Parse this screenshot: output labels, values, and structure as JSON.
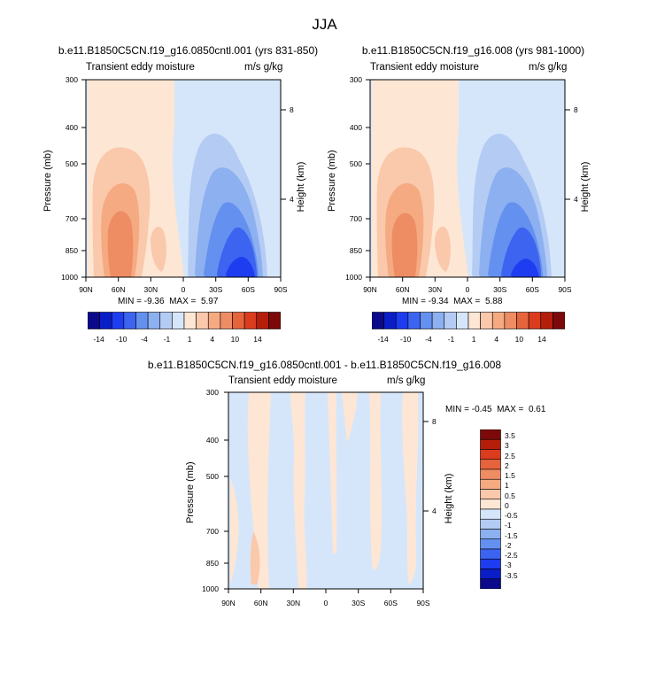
{
  "title": "JJA",
  "colors": {
    "neg": [
      "#0a0a8a",
      "#0a1ec8",
      "#1e3cf0",
      "#3c64f0",
      "#6490f0",
      "#8cb0f0",
      "#b4ccf4",
      "#d6e6fa"
    ],
    "pos": [
      "#fde6d4",
      "#fac8aa",
      "#f5aa82",
      "#ee8c64",
      "#e6643c",
      "#dc3c1e",
      "#b41e0a",
      "#7c0a0a"
    ]
  },
  "chart_data": [
    {
      "id": "panel1",
      "type": "contour",
      "title": "b.e11.B1850C5CN.f19_g16.0850cntl.001 (yrs 831-850)",
      "left_label": "Transient eddy moisture",
      "right_label": "m/s g/kg",
      "ylabel": "Pressure (mb)",
      "ylabel_right": "Height (km)",
      "x_ticks": [
        "90N",
        "60N",
        "30N",
        "0",
        "30S",
        "60S",
        "90S"
      ],
      "y_ticks": [
        "300",
        "400",
        "500",
        "700",
        "850",
        "1000"
      ],
      "y_right_ticks": [
        "8",
        "4"
      ],
      "min_label": "MIN =",
      "min": "-9.36",
      "max_label": "MAX =",
      "max": "5.97",
      "colorbar_labels": [
        "-14",
        "-10",
        "-4",
        "-1",
        "1",
        "4",
        "10",
        "14"
      ]
    },
    {
      "id": "panel2",
      "type": "contour",
      "title": "b.e11.B1850C5CN.f19_g16.008 (yrs 981-1000)",
      "left_label": "Transient eddy moisture",
      "right_label": "m/s g/kg",
      "ylabel": "Pressure (mb)",
      "ylabel_right": "Height (km)",
      "x_ticks": [
        "90N",
        "60N",
        "30N",
        "0",
        "30S",
        "60S",
        "90S"
      ],
      "y_ticks": [
        "300",
        "400",
        "500",
        "700",
        "850",
        "1000"
      ],
      "y_right_ticks": [
        "8",
        "4"
      ],
      "min_label": "MIN =",
      "min": "-9.34",
      "max_label": "MAX =",
      "max": "5.88",
      "colorbar_labels": [
        "-14",
        "-10",
        "-4",
        "-1",
        "1",
        "4",
        "10",
        "14"
      ]
    },
    {
      "id": "diff",
      "type": "contour",
      "title": "b.e11.B1850C5CN.f19_g16.0850cntl.001 - b.e11.B1850C5CN.f19_g16.008",
      "left_label": "Transient eddy moisture",
      "right_label": "m/s g/kg",
      "ylabel": "Pressure (mb)",
      "ylabel_right": "Height (km)",
      "x_ticks": [
        "90N",
        "60N",
        "30N",
        "0",
        "30S",
        "60S",
        "90S"
      ],
      "y_ticks": [
        "300",
        "400",
        "500",
        "700",
        "850",
        "1000"
      ],
      "y_right_ticks": [
        "8",
        "4"
      ],
      "min_label": "MIN =",
      "min": "-0.45",
      "max_label": "MAX =",
      "max": "0.61",
      "colorbar_labels": [
        "3.5",
        "3",
        "2.5",
        "2",
        "1.5",
        "1",
        "0.5",
        "0",
        "-0.5",
        "-1",
        "-1.5",
        "-2",
        "-2.5",
        "-3",
        "-3.5"
      ]
    }
  ]
}
